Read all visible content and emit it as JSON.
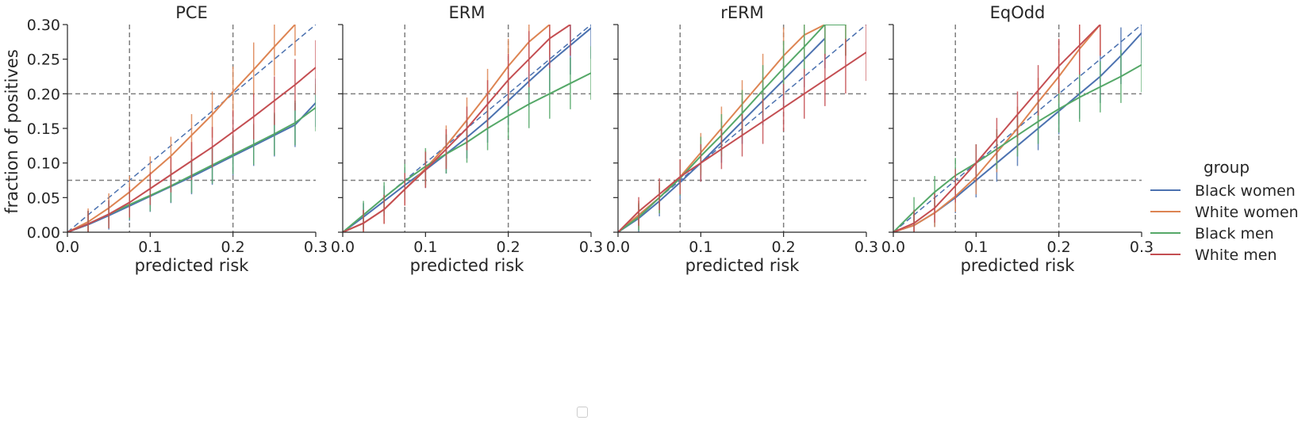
{
  "chart_data": [
    {
      "type": "line",
      "title": "PCE",
      "xlabel": "predicted risk",
      "ylabel": "fraction of positives",
      "xlim": [
        0.0,
        0.3
      ],
      "ylim": [
        0.0,
        0.3
      ],
      "xticks": [
        "0.0",
        "0.1",
        "0.2",
        "0.3"
      ],
      "yticks": [
        "0.00",
        "0.05",
        "0.10",
        "0.15",
        "0.20",
        "0.25",
        "0.30"
      ],
      "reference_lines": {
        "vertical": [
          0.075,
          0.2
        ],
        "horizontal": [
          0.075,
          0.2
        ],
        "diagonal": true
      },
      "series": [
        {
          "name": "Black women",
          "x": [
            0,
            0.025,
            0.05,
            0.075,
            0.1,
            0.125,
            0.15,
            0.175,
            0.2,
            0.225,
            0.25,
            0.275,
            0.3
          ],
          "y": [
            0,
            0.011,
            0.024,
            0.038,
            0.052,
            0.066,
            0.08,
            0.095,
            0.11,
            0.125,
            0.14,
            0.155,
            0.187
          ]
        },
        {
          "name": "White women",
          "x": [
            0,
            0.025,
            0.05,
            0.075,
            0.1,
            0.125,
            0.15,
            0.175,
            0.2,
            0.225,
            0.25,
            0.275
          ],
          "y": [
            0,
            0.015,
            0.035,
            0.058,
            0.084,
            0.11,
            0.14,
            0.17,
            0.203,
            0.235,
            0.268,
            0.3
          ]
        },
        {
          "name": "Black men",
          "x": [
            0,
            0.025,
            0.05,
            0.075,
            0.1,
            0.125,
            0.15,
            0.175,
            0.2,
            0.225,
            0.25,
            0.275,
            0.3
          ],
          "y": [
            0,
            0.012,
            0.026,
            0.04,
            0.053,
            0.067,
            0.082,
            0.097,
            0.112,
            0.127,
            0.142,
            0.158,
            0.18
          ]
        },
        {
          "name": "White men",
          "x": [
            0,
            0.025,
            0.05,
            0.075,
            0.1,
            0.125,
            0.15,
            0.175,
            0.2,
            0.225,
            0.25,
            0.275,
            0.3
          ],
          "y": [
            0,
            0.012,
            0.026,
            0.043,
            0.063,
            0.083,
            0.103,
            0.123,
            0.145,
            0.167,
            0.19,
            0.213,
            0.238
          ]
        }
      ]
    },
    {
      "type": "line",
      "title": "ERM",
      "xlabel": "predicted risk",
      "ylabel": "",
      "xlim": [
        0.0,
        0.3
      ],
      "ylim": [
        0.0,
        0.3
      ],
      "xticks": [
        "0.0",
        "0.1",
        "0.2",
        "0.3"
      ],
      "yticks": [
        "0.00",
        "0.05",
        "0.10",
        "0.15",
        "0.20",
        "0.25",
        "0.30"
      ],
      "reference_lines": {
        "vertical": [
          0.075,
          0.2
        ],
        "horizontal": [
          0.075,
          0.2
        ],
        "diagonal": true
      },
      "series": [
        {
          "name": "Black women",
          "x": [
            0,
            0.025,
            0.05,
            0.075,
            0.1,
            0.125,
            0.15,
            0.175,
            0.2,
            0.225,
            0.25,
            0.275,
            0.3
          ],
          "y": [
            0,
            0.022,
            0.045,
            0.068,
            0.09,
            0.113,
            0.137,
            0.162,
            0.19,
            0.218,
            0.245,
            0.27,
            0.295
          ]
        },
        {
          "name": "White women",
          "x": [
            0,
            0.025,
            0.05,
            0.075,
            0.1,
            0.125,
            0.15,
            0.175,
            0.2,
            0.225,
            0.25
          ],
          "y": [
            0,
            0.013,
            0.033,
            0.062,
            0.092,
            0.125,
            0.162,
            0.2,
            0.24,
            0.275,
            0.3
          ]
        },
        {
          "name": "Black men",
          "x": [
            0,
            0.025,
            0.05,
            0.075,
            0.1,
            0.125,
            0.15,
            0.175,
            0.2,
            0.225,
            0.25,
            0.275,
            0.3
          ],
          "y": [
            0,
            0.025,
            0.05,
            0.074,
            0.095,
            0.113,
            0.13,
            0.15,
            0.168,
            0.185,
            0.2,
            0.215,
            0.23
          ]
        },
        {
          "name": "White men",
          "x": [
            0,
            0.025,
            0.05,
            0.075,
            0.1,
            0.125,
            0.15,
            0.175,
            0.2,
            0.225,
            0.25,
            0.275
          ],
          "y": [
            0,
            0.013,
            0.033,
            0.062,
            0.09,
            0.12,
            0.15,
            0.185,
            0.22,
            0.25,
            0.28,
            0.3
          ]
        }
      ]
    },
    {
      "type": "line",
      "title": "rERM",
      "xlabel": "predicted risk",
      "ylabel": "",
      "xlim": [
        0.0,
        0.3
      ],
      "ylim": [
        0.0,
        0.3
      ],
      "xticks": [
        "0.0",
        "0.1",
        "0.2",
        "0.3"
      ],
      "yticks": [
        "0.00",
        "0.05",
        "0.10",
        "0.15",
        "0.20",
        "0.25",
        "0.30"
      ],
      "reference_lines": {
        "vertical": [
          0.075,
          0.2
        ],
        "horizontal": [
          0.075,
          0.2
        ],
        "diagonal": true
      },
      "series": [
        {
          "name": "Black women",
          "x": [
            0,
            0.025,
            0.05,
            0.075,
            0.1,
            0.125,
            0.15,
            0.175,
            0.2,
            0.225,
            0.25
          ],
          "y": [
            0,
            0.02,
            0.045,
            0.072,
            0.1,
            0.13,
            0.16,
            0.19,
            0.22,
            0.25,
            0.28
          ]
        },
        {
          "name": "White women",
          "x": [
            0,
            0.025,
            0.05,
            0.075,
            0.1,
            0.125,
            0.15,
            0.175,
            0.2,
            0.225,
            0.25,
            0.275
          ],
          "y": [
            0,
            0.025,
            0.05,
            0.08,
            0.115,
            0.15,
            0.185,
            0.22,
            0.255,
            0.285,
            0.3,
            0.3
          ]
        },
        {
          "name": "Black men",
          "x": [
            0,
            0.025,
            0.05,
            0.075,
            0.1,
            0.125,
            0.15,
            0.175,
            0.2,
            0.225,
            0.25,
            0.275
          ],
          "y": [
            0,
            0.022,
            0.05,
            0.078,
            0.11,
            0.14,
            0.172,
            0.205,
            0.237,
            0.268,
            0.3,
            0.3
          ]
        },
        {
          "name": "White men",
          "x": [
            0,
            0.025,
            0.05,
            0.075,
            0.1,
            0.125,
            0.15,
            0.175,
            0.2,
            0.225,
            0.25,
            0.275,
            0.3
          ],
          "y": [
            0,
            0.03,
            0.055,
            0.08,
            0.1,
            0.12,
            0.14,
            0.16,
            0.18,
            0.2,
            0.22,
            0.24,
            0.26
          ]
        }
      ]
    },
    {
      "type": "line",
      "title": "EqOdd",
      "xlabel": "predicted risk",
      "ylabel": "",
      "xlim": [
        0.0,
        0.3
      ],
      "ylim": [
        0.0,
        0.3
      ],
      "xticks": [
        "0.0",
        "0.1",
        "0.2",
        "0.3"
      ],
      "yticks": [
        "0.00",
        "0.05",
        "0.10",
        "0.15",
        "0.20",
        "0.25",
        "0.30"
      ],
      "reference_lines": {
        "vertical": [
          0.075,
          0.2
        ],
        "horizontal": [
          0.075,
          0.2
        ],
        "diagonal": true
      },
      "series": [
        {
          "name": "Black women",
          "x": [
            0,
            0.025,
            0.05,
            0.075,
            0.1,
            0.125,
            0.15,
            0.175,
            0.2,
            0.225,
            0.25,
            0.275,
            0.3
          ],
          "y": [
            0,
            0.01,
            0.028,
            0.05,
            0.075,
            0.1,
            0.125,
            0.15,
            0.175,
            0.2,
            0.225,
            0.255,
            0.288
          ]
        },
        {
          "name": "White women",
          "x": [
            0,
            0.025,
            0.05,
            0.075,
            0.1,
            0.125,
            0.15,
            0.175,
            0.2,
            0.225,
            0.25
          ],
          "y": [
            0,
            0.01,
            0.028,
            0.052,
            0.08,
            0.115,
            0.15,
            0.188,
            0.225,
            0.265,
            0.3
          ]
        },
        {
          "name": "Black men",
          "x": [
            0,
            0.025,
            0.05,
            0.075,
            0.1,
            0.125,
            0.15,
            0.175,
            0.2,
            0.225,
            0.25,
            0.275,
            0.3
          ],
          "y": [
            0,
            0.03,
            0.058,
            0.082,
            0.1,
            0.12,
            0.14,
            0.16,
            0.178,
            0.195,
            0.21,
            0.225,
            0.242
          ]
        },
        {
          "name": "White men",
          "x": [
            0,
            0.025,
            0.05,
            0.075,
            0.1,
            0.125,
            0.15,
            0.175,
            0.2,
            0.225,
            0.25
          ],
          "y": [
            0,
            0.013,
            0.035,
            0.067,
            0.1,
            0.135,
            0.17,
            0.205,
            0.24,
            0.27,
            0.3
          ]
        }
      ]
    }
  ],
  "legend": {
    "title": "group",
    "placement": "right",
    "entries": [
      "Black women",
      "White women",
      "Black men",
      "White men"
    ]
  },
  "colors": {
    "Black women": "#4c72b0",
    "White women": "#dd8452",
    "Black men": "#55a868",
    "White men": "#c44e52",
    "reference": "#7f7f7f",
    "axis": "#262626"
  }
}
